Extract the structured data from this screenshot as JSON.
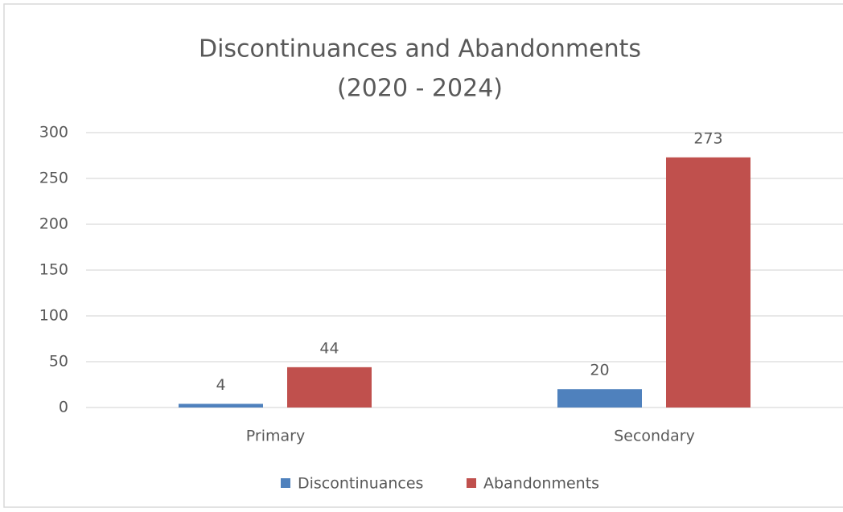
{
  "chart_data": {
    "type": "bar",
    "title": [
      "Discontinuances and Abandonments",
      "(2020 - 2024)"
    ],
    "categories": [
      "Primary",
      "Secondary"
    ],
    "series": [
      {
        "name": "Discontinuances",
        "color": "#4f81bd",
        "values": [
          4,
          20
        ]
      },
      {
        "name": "Abandonments",
        "color": "#c0504d",
        "values": [
          44,
          273
        ]
      }
    ],
    "ylim": [
      0,
      300
    ],
    "yticks": [
      0,
      50,
      100,
      150,
      200,
      250,
      300
    ],
    "grid": true,
    "legend": "bottom"
  }
}
